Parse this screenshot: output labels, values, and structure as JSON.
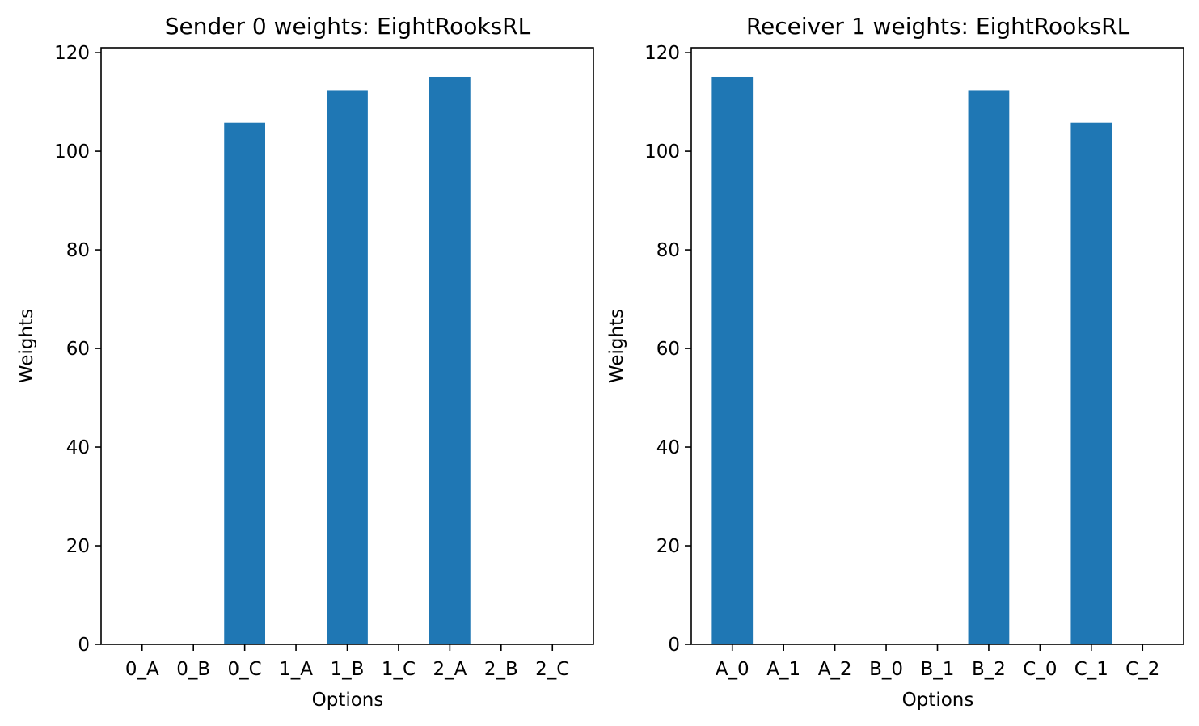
{
  "colors": {
    "bar": "#1f77b4",
    "axis": "#000000",
    "background": "#ffffff"
  },
  "chart_data": [
    {
      "type": "bar",
      "title": "Sender 0 weights: EightRooksRL",
      "xlabel": "Options",
      "ylabel": "Weights",
      "categories": [
        "0_A",
        "0_B",
        "0_C",
        "1_A",
        "1_B",
        "1_C",
        "2_A",
        "2_B",
        "2_C"
      ],
      "values": [
        0,
        0,
        105.8,
        0,
        112.4,
        0,
        115.1,
        0,
        0
      ],
      "ylim": [
        0,
        121
      ],
      "yticks": [
        0,
        20,
        40,
        60,
        80,
        100,
        120
      ],
      "grid": false
    },
    {
      "type": "bar",
      "title": "Receiver 1 weights: EightRooksRL",
      "xlabel": "Options",
      "ylabel": "Weights",
      "categories": [
        "A_0",
        "A_1",
        "A_2",
        "B_0",
        "B_1",
        "B_2",
        "C_0",
        "C_1",
        "C_2"
      ],
      "values": [
        115.1,
        0,
        0,
        0,
        0,
        112.4,
        0,
        105.8,
        0
      ],
      "ylim": [
        0,
        121
      ],
      "yticks": [
        0,
        20,
        40,
        60,
        80,
        100,
        120
      ],
      "grid": false
    }
  ]
}
